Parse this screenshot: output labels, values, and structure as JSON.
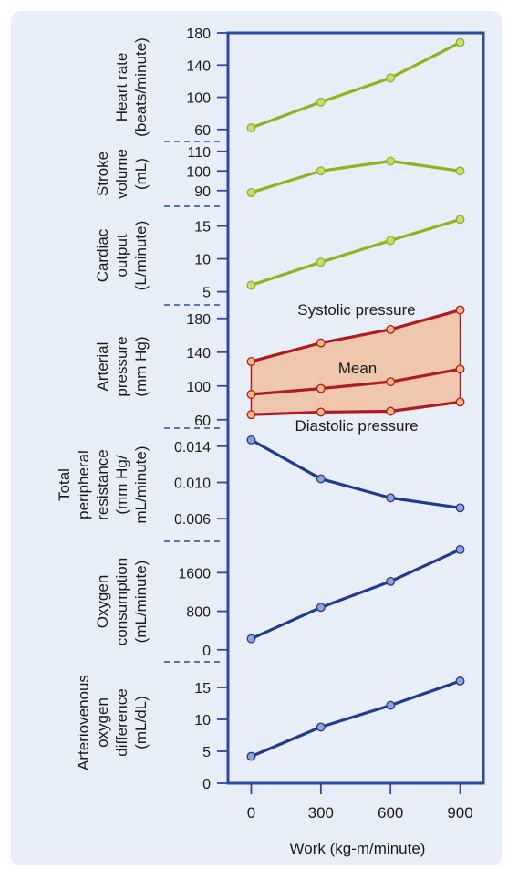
{
  "colors": {
    "panel_bg": "#e8eef8",
    "plot_border": "#2e4a9e",
    "axis": "#2e4a9e",
    "green_line": "#8fb31d",
    "green_marker": "#c8de74",
    "red_line": "#b01b22",
    "band_fill": "#efc6ae",
    "orange_marker": "#f2b87e",
    "blue_line": "#1f3a8f",
    "blue_marker": "#8fa4d8"
  },
  "x_axis": {
    "label": "Work (kg-m/minute)",
    "ticks": [
      "0",
      "300",
      "600",
      "900"
    ],
    "values": [
      0,
      300,
      600,
      900
    ],
    "lim": [
      -100,
      1000
    ]
  },
  "chart_data": [
    {
      "type": "line",
      "ylabel_lines": [
        "Heart rate",
        "(beats/minute)"
      ],
      "ylim": [
        45,
        180
      ],
      "y_ticks": [
        {
          "v": 180,
          "t": "180"
        },
        {
          "v": 140,
          "t": "140"
        },
        {
          "v": 100,
          "t": "100"
        },
        {
          "v": 60,
          "t": "60"
        }
      ],
      "series": [
        {
          "x": [
            0,
            300,
            600,
            900
          ],
          "values": [
            62,
            94,
            124,
            168
          ],
          "color": "green"
        }
      ]
    },
    {
      "type": "line",
      "ylabel_lines": [
        "Stroke",
        "volume",
        "(mL)"
      ],
      "ylim": [
        82,
        115
      ],
      "y_ticks": [
        {
          "v": 110,
          "t": "110"
        },
        {
          "v": 100,
          "t": "100"
        },
        {
          "v": 90,
          "t": "90"
        }
      ],
      "series": [
        {
          "x": [
            0,
            300,
            600,
            900
          ],
          "values": [
            89,
            100,
            105,
            100
          ],
          "color": "green"
        }
      ]
    },
    {
      "type": "line",
      "ylabel_lines": [
        "Cardiac",
        "output",
        "(L/minute)"
      ],
      "ylim": [
        3,
        18
      ],
      "y_ticks": [
        {
          "v": 15,
          "t": "15"
        },
        {
          "v": 10,
          "t": "10"
        },
        {
          "v": 5,
          "t": "5"
        }
      ],
      "series": [
        {
          "x": [
            0,
            300,
            600,
            900
          ],
          "values": [
            6,
            9.5,
            12.8,
            16
          ],
          "color": "green"
        }
      ]
    },
    {
      "type": "area",
      "ylabel_lines": [
        "Arterial",
        "pressure",
        "(mm Hg)"
      ],
      "ylim": [
        50,
        196
      ],
      "y_ticks": [
        {
          "v": 180,
          "t": "180"
        },
        {
          "v": 140,
          "t": "140"
        },
        {
          "v": 100,
          "t": "100"
        },
        {
          "v": 60,
          "t": "60"
        }
      ],
      "series": [
        {
          "name": "Systolic pressure",
          "x": [
            0,
            300,
            600,
            900
          ],
          "values": [
            129,
            151,
            167,
            190
          ],
          "color": "red"
        },
        {
          "name": "Mean",
          "x": [
            0,
            300,
            600,
            900
          ],
          "values": [
            90,
            97,
            105,
            120
          ],
          "color": "red"
        },
        {
          "name": "Diastolic pressure",
          "x": [
            0,
            300,
            600,
            900
          ],
          "values": [
            66,
            69,
            70,
            81
          ],
          "color": "red"
        }
      ],
      "annotations": [
        "Systolic pressure",
        "Mean",
        "Diastolic pressure"
      ]
    },
    {
      "type": "line",
      "ylabel_lines": [
        "Total",
        "peripheral",
        "resistance",
        "(mm Hg/",
        "mL/minute)"
      ],
      "ylim": [
        0.0035,
        0.016
      ],
      "y_ticks": [
        {
          "v": 0.014,
          "t": "0.014"
        },
        {
          "v": 0.01,
          "t": "0.010"
        },
        {
          "v": 0.006,
          "t": "0.006"
        }
      ],
      "series": [
        {
          "x": [
            0,
            300,
            600,
            900
          ],
          "values": [
            0.0147,
            0.0104,
            0.0083,
            0.0072
          ],
          "color": "blue"
        }
      ]
    },
    {
      "type": "line",
      "ylabel_lines": [
        "Oxygen",
        "consumption",
        "(mL/minute)"
      ],
      "ylim": [
        -250,
        2250
      ],
      "y_ticks": [
        {
          "v": 1600,
          "t": "1600"
        },
        {
          "v": 800,
          "t": "800"
        },
        {
          "v": 0,
          "t": "0"
        }
      ],
      "series": [
        {
          "x": [
            0,
            300,
            600,
            900
          ],
          "values": [
            230,
            880,
            1420,
            2080
          ],
          "color": "blue"
        }
      ]
    },
    {
      "type": "line",
      "ylabel_lines": [
        "Arteriovenous",
        "oxygen",
        "difference",
        "(mL/dL)"
      ],
      "ylim": [
        0,
        19
      ],
      "y_ticks": [
        {
          "v": 15,
          "t": "15"
        },
        {
          "v": 10,
          "t": "10"
        },
        {
          "v": 5,
          "t": "5"
        },
        {
          "v": 0,
          "t": "0"
        }
      ],
      "series": [
        {
          "x": [
            0,
            300,
            600,
            900
          ],
          "values": [
            4.2,
            8.8,
            12.2,
            16
          ],
          "color": "blue"
        }
      ]
    }
  ]
}
